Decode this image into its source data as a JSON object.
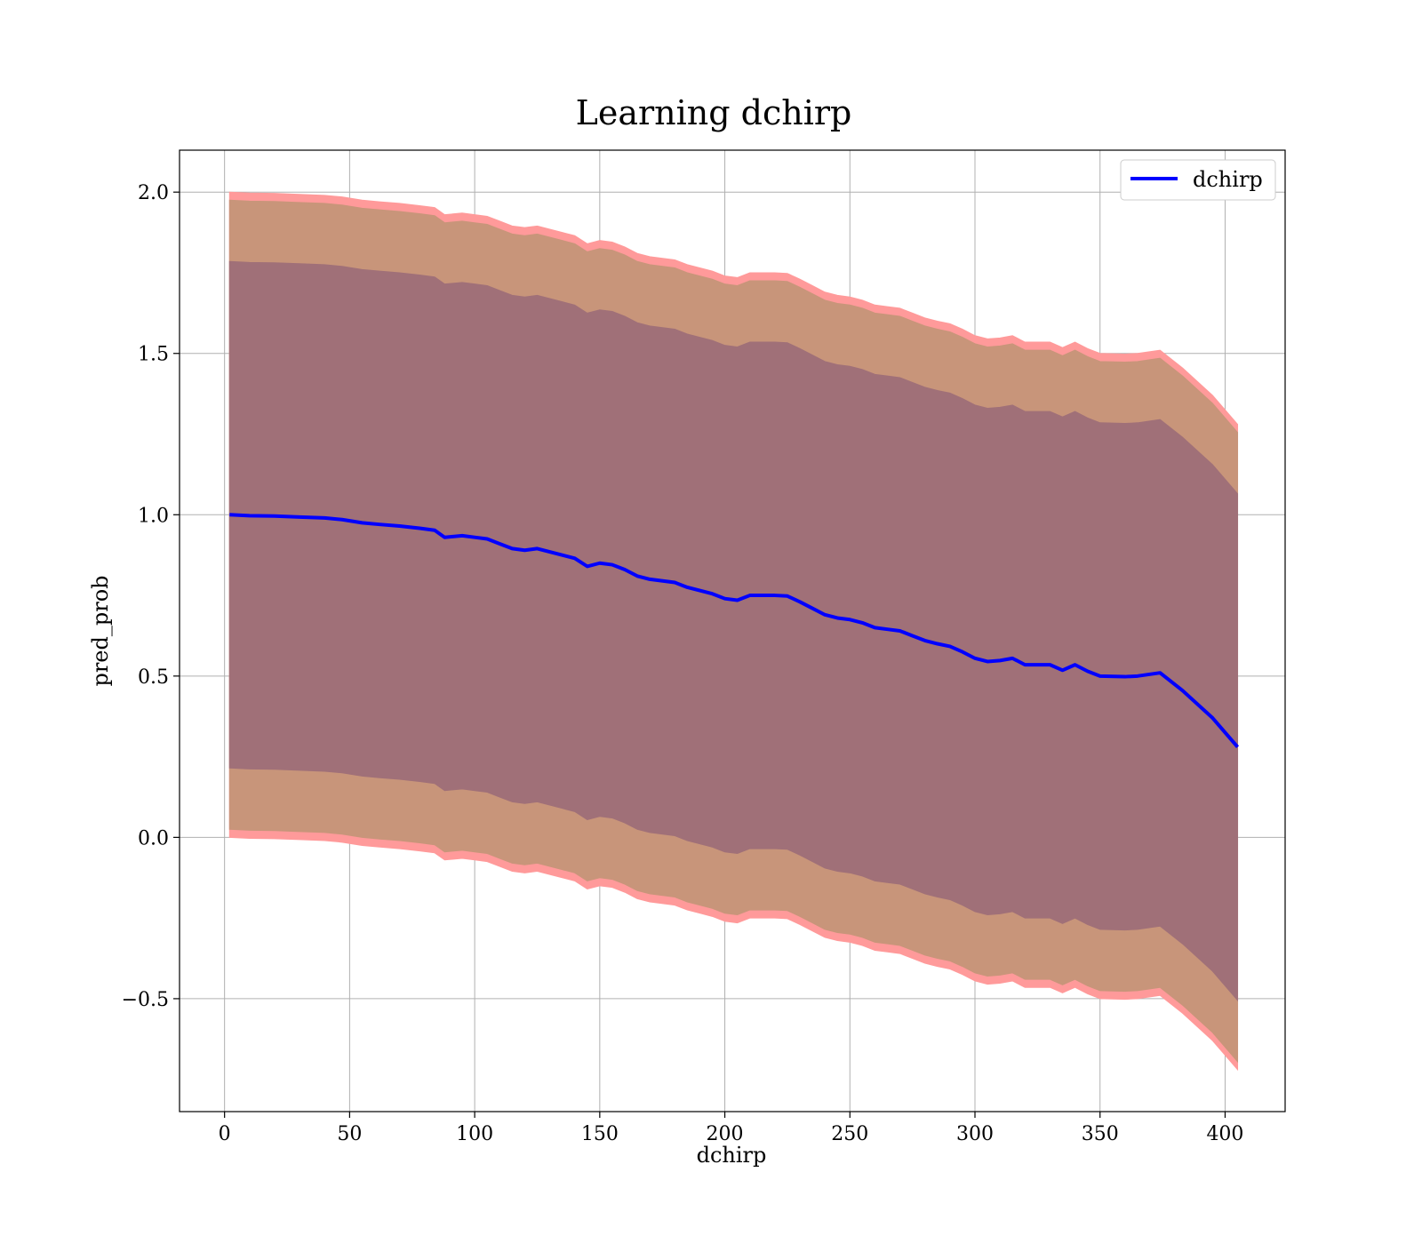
{
  "chart_data": {
    "type": "line",
    "title": "Learning dchirp",
    "xlabel": "dchirp",
    "ylabel": "pred_prob",
    "xlim": [
      -18,
      424
    ],
    "ylim": [
      -0.85,
      2.13
    ],
    "xticks": [
      0,
      50,
      100,
      150,
      200,
      250,
      300,
      350,
      400
    ],
    "xtick_labels": [
      "0",
      "50",
      "100",
      "150",
      "200",
      "250",
      "300",
      "350",
      "400"
    ],
    "yticks": [
      -0.5,
      0.0,
      0.5,
      1.0,
      1.5,
      2.0
    ],
    "ytick_labels": [
      "−0.5",
      "0.0",
      "0.5",
      "1.0",
      "1.5",
      "2.0"
    ],
    "grid": true,
    "legend": {
      "position": "top-right",
      "entries": [
        "dchirp"
      ]
    },
    "colors": {
      "line": "#0000ff",
      "outer_band": "#ff9a9a",
      "middle_band": "#c8957a",
      "inner_band": "#a07078",
      "grid": "#b0b0b0"
    },
    "series": [
      {
        "name": "dchirp",
        "x": [
          2,
          10,
          20,
          30,
          40,
          47,
          55,
          62,
          70,
          78,
          84,
          88,
          95,
          100,
          105,
          110,
          115,
          120,
          125,
          130,
          135,
          140,
          145,
          150,
          155,
          160,
          165,
          170,
          180,
          185,
          190,
          195,
          200,
          205,
          210,
          215,
          220,
          225,
          230,
          235,
          240,
          245,
          250,
          255,
          260,
          265,
          270,
          275,
          280,
          285,
          290,
          295,
          300,
          305,
          310,
          315,
          320,
          330,
          335,
          340,
          345,
          350,
          360,
          365,
          374,
          383,
          395,
          405
        ],
        "y": [
          1.0,
          0.997,
          0.996,
          0.993,
          0.99,
          0.985,
          0.975,
          0.97,
          0.965,
          0.958,
          0.952,
          0.93,
          0.935,
          0.93,
          0.925,
          0.91,
          0.895,
          0.89,
          0.895,
          0.885,
          0.875,
          0.865,
          0.84,
          0.85,
          0.845,
          0.83,
          0.81,
          0.8,
          0.79,
          0.775,
          0.765,
          0.755,
          0.74,
          0.735,
          0.75,
          0.75,
          0.75,
          0.748,
          0.73,
          0.71,
          0.69,
          0.68,
          0.675,
          0.665,
          0.65,
          0.645,
          0.64,
          0.625,
          0.61,
          0.6,
          0.592,
          0.575,
          0.555,
          0.545,
          0.548,
          0.555,
          0.535,
          0.535,
          0.518,
          0.535,
          0.515,
          0.5,
          0.498,
          0.5,
          0.51,
          0.455,
          0.37,
          0.28
        ],
        "band_inner_halfwidth": [
          0.785,
          0.785,
          0.785,
          0.785,
          0.785,
          0.785,
          0.785,
          0.785,
          0.785,
          0.785,
          0.785,
          0.785,
          0.785,
          0.785,
          0.785,
          0.785,
          0.785,
          0.785,
          0.785,
          0.785,
          0.785,
          0.785,
          0.785,
          0.785,
          0.785,
          0.785,
          0.785,
          0.785,
          0.785,
          0.785,
          0.785,
          0.785,
          0.785,
          0.785,
          0.785,
          0.785,
          0.785,
          0.785,
          0.785,
          0.785,
          0.785,
          0.785,
          0.785,
          0.785,
          0.785,
          0.785,
          0.785,
          0.785,
          0.785,
          0.785,
          0.785,
          0.785,
          0.785,
          0.785,
          0.785,
          0.785,
          0.785,
          0.785,
          0.785,
          0.785,
          0.785,
          0.785,
          0.785,
          0.785,
          0.785,
          0.785,
          0.785,
          0.785
        ],
        "band_middle_halfwidth": [
          0.975,
          0.975,
          0.975,
          0.975,
          0.975,
          0.975,
          0.975,
          0.975,
          0.975,
          0.975,
          0.975,
          0.975,
          0.975,
          0.975,
          0.975,
          0.975,
          0.975,
          0.975,
          0.975,
          0.975,
          0.975,
          0.975,
          0.975,
          0.975,
          0.975,
          0.975,
          0.975,
          0.975,
          0.975,
          0.975,
          0.975,
          0.975,
          0.975,
          0.975,
          0.975,
          0.975,
          0.975,
          0.975,
          0.975,
          0.975,
          0.975,
          0.975,
          0.975,
          0.975,
          0.975,
          0.975,
          0.975,
          0.975,
          0.975,
          0.975,
          0.975,
          0.975,
          0.975,
          0.975,
          0.975,
          0.975,
          0.975,
          0.975,
          0.975,
          0.975,
          0.975,
          0.975,
          0.975,
          0.975,
          0.975,
          0.975,
          0.975,
          0.975
        ],
        "band_outer_halfwidth": [
          1.0,
          1.0,
          1.0,
          1.0,
          1.0,
          1.0,
          1.0,
          1.0,
          1.0,
          1.0,
          1.0,
          1.0,
          1.0,
          1.0,
          1.0,
          1.0,
          1.0,
          1.0,
          1.0,
          1.0,
          1.0,
          1.0,
          1.0,
          1.0,
          1.0,
          1.0,
          1.0,
          1.0,
          1.0,
          1.0,
          1.0,
          1.0,
          1.0,
          1.0,
          1.0,
          1.0,
          1.0,
          1.0,
          1.0,
          1.0,
          1.0,
          1.0,
          1.0,
          1.0,
          1.0,
          1.0,
          1.0,
          1.0,
          1.0,
          1.0,
          1.0,
          1.0,
          1.0,
          1.0,
          1.0,
          1.0,
          1.0,
          1.0,
          1.0,
          1.0,
          1.0,
          1.0,
          1.0,
          1.0,
          1.0,
          1.0,
          1.0,
          1.0
        ]
      }
    ]
  }
}
